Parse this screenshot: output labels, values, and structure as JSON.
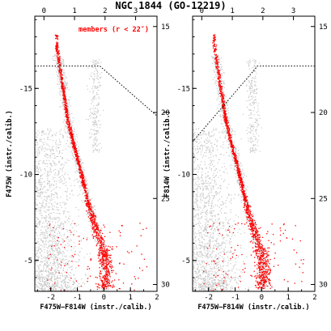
{
  "figure": {
    "title": "NGC 1844 (GO-12219)"
  },
  "chart_data": [
    {
      "type": "scatter",
      "panel": "left",
      "xlabel": "F475W−F814W (instr./calib.)",
      "ylabel": "F475W (instr./calib.)",
      "xlim": [
        -2.6,
        2.0
      ],
      "ylim": [
        -3.2,
        -19.2
      ],
      "xlim_calibrated": [
        -0.3,
        3.7
      ],
      "ylim_calibrated": [
        14.4,
        30.4
      ],
      "x_ticks": [
        "-2",
        "-1",
        "0",
        "1",
        "2"
      ],
      "y_ticks": [
        "-15",
        "-10",
        "-5"
      ],
      "top_ticks": [
        "0",
        "1",
        "2",
        "3"
      ],
      "right_ticks": [
        "15",
        "20",
        "25",
        "30"
      ],
      "legend": {
        "text": "members (r < 22″)",
        "color": "#ff0000",
        "position": "top-right"
      },
      "series": [
        {
          "name": "members (r < 22″)",
          "color": "#ff0000"
        },
        {
          "color": "#c8c8c8"
        }
      ],
      "dotted_line": {
        "x": [
          -2.6,
          -0.15,
          2.0
        ],
        "y": [
          -16.3,
          -16.3,
          -13.4
        ]
      },
      "ridge_line": {
        "x": [
          -1.8,
          -1.55,
          -1.35,
          -1.1,
          -0.85,
          -0.6,
          -0.3,
          0.05
        ],
        "y": [
          -17.5,
          -15.0,
          -13.0,
          -11.5,
          -10.0,
          -8.3,
          -6.8,
          -5.0
        ]
      }
    },
    {
      "type": "scatter",
      "panel": "right",
      "xlabel": "F475W−F814W (instr./calib.)",
      "ylabel": "F814W (instr./calib.)",
      "xlim": [
        -2.6,
        2.0
      ],
      "ylim": [
        -3.2,
        -19.2
      ],
      "xlim_calibrated": [
        -0.3,
        3.7
      ],
      "ylim_calibrated": [
        14.4,
        30.4
      ],
      "x_ticks": [
        "-2",
        "-1",
        "0",
        "1",
        "2"
      ],
      "y_ticks": [
        "-15",
        "-10",
        "-5"
      ],
      "top_ticks": [
        "0",
        "1",
        "2",
        "3"
      ],
      "right_ticks": [
        "15",
        "20",
        "25",
        "30"
      ],
      "series": [
        {
          "name": "members (r < 22″)",
          "color": "#ff0000"
        },
        {
          "color": "#c8c8c8"
        }
      ],
      "dotted_line": {
        "x": [
          -2.6,
          -0.15,
          2.0
        ],
        "y": [
          -11.9,
          -16.3,
          -16.3
        ]
      },
      "ridge_line": {
        "x": [
          -1.8,
          -1.55,
          -1.35,
          -1.1,
          -0.85,
          -0.6,
          -0.3,
          0.05
        ],
        "y": [
          -17.5,
          -15.0,
          -13.0,
          -11.5,
          -10.0,
          -8.3,
          -6.8,
          -5.0
        ]
      }
    }
  ]
}
